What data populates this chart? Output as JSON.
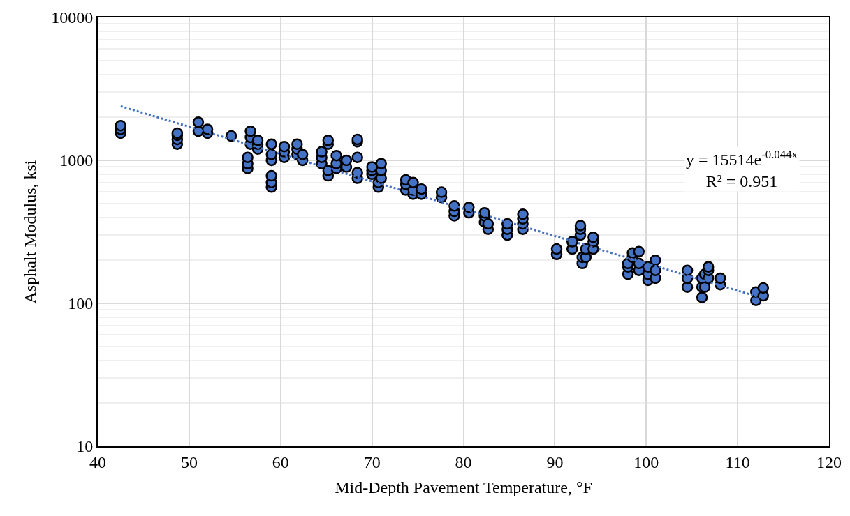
{
  "chart_data": {
    "type": "scatter",
    "xlabel": "Mid-Depth Pavement Temperature, °F",
    "ylabel": "Asphalt Modulus, ksi",
    "xlim": [
      40,
      120
    ],
    "xticks": [
      40,
      50,
      60,
      70,
      80,
      90,
      100,
      110,
      120
    ],
    "ylim": [
      10,
      10000
    ],
    "yticks": [
      10,
      100,
      1000,
      10000
    ],
    "log": "y",
    "grid": true,
    "annotations": [
      "y = 15514e$^{-0.044x}$\nR² = 0.951"
    ],
    "series": [
      {
        "marker": "circle",
        "color": "#4472c4",
        "x": [
          42.5,
          42.5,
          42.5,
          48.7,
          48.7,
          48.7,
          48.7,
          51,
          51,
          52,
          52,
          54.6,
          56.4,
          56.4,
          56.4,
          56.7,
          56.7,
          56.7,
          57.5,
          57.5,
          57.5,
          59,
          59,
          59,
          59,
          59,
          59,
          60.4,
          60.4,
          60.4,
          61.8,
          61.8,
          61.8,
          62.4,
          62.4,
          64.5,
          64.5,
          64.5,
          65.2,
          65.2,
          65.2,
          65.2,
          66.1,
          66.1,
          66.1,
          67.2,
          67.2,
          68.4,
          68.4,
          68.4,
          68.4,
          68.4,
          70,
          70,
          70,
          70.7,
          70.7,
          71,
          71,
          71,
          73.7,
          73.7,
          73.7,
          74.5,
          74.5,
          74.5,
          75.4,
          75.4,
          77.6,
          77.6,
          79,
          79,
          79,
          80.6,
          80.6,
          82.3,
          82.3,
          82.3,
          82.7,
          82.7,
          84.8,
          84.8,
          84.8,
          86.5,
          86.5,
          86.5,
          86.5,
          90.2,
          90.2,
          91.9,
          91.9,
          92.8,
          92.8,
          92.8,
          93,
          93,
          93.4,
          93.4,
          94.2,
          94.2,
          94.2,
          98,
          98,
          98,
          98.5,
          98.5,
          99.2,
          99.2,
          99.2,
          100.2,
          100.2,
          100.2,
          101,
          101,
          101,
          104.5,
          104.5,
          104.5,
          106.1,
          106.1,
          106.1,
          106.4,
          106.4,
          106.8,
          106.8,
          106.8,
          108.1,
          108.1,
          112,
          112,
          112.8,
          112.8
        ],
        "values": [
          1550,
          1650,
          1750,
          1300,
          1400,
          1500,
          1550,
          1600,
          1850,
          1550,
          1650,
          1480,
          880,
          950,
          1050,
          1300,
          1450,
          1600,
          1200,
          1300,
          1380,
          650,
          700,
          780,
          1000,
          1100,
          1300,
          1050,
          1150,
          1250,
          1100,
          1200,
          1300,
          1000,
          1100,
          950,
          1050,
          1150,
          780,
          850,
          1300,
          1380,
          880,
          950,
          1080,
          900,
          1000,
          750,
          820,
          1050,
          1350,
          1400,
          800,
          850,
          900,
          650,
          700,
          750,
          850,
          950,
          620,
          680,
          730,
          580,
          620,
          700,
          580,
          630,
          550,
          600,
          410,
          440,
          480,
          430,
          470,
          370,
          410,
          430,
          330,
          360,
          300,
          330,
          360,
          330,
          360,
          390,
          420,
          220,
          240,
          240,
          270,
          300,
          330,
          350,
          190,
          210,
          210,
          240,
          240,
          270,
          290,
          160,
          180,
          190,
          210,
          225,
          170,
          190,
          230,
          145,
          160,
          180,
          150,
          170,
          200,
          130,
          150,
          170,
          110,
          130,
          150,
          130,
          160,
          150,
          170,
          180,
          135,
          150,
          105,
          120,
          113,
          128
        ]
      },
      {
        "type": "line",
        "color": "#4472c4",
        "line_style": "dotted",
        "x": [
          42.5,
          112.8
        ],
        "values": [
          2391,
          108.5
        ]
      }
    ]
  }
}
